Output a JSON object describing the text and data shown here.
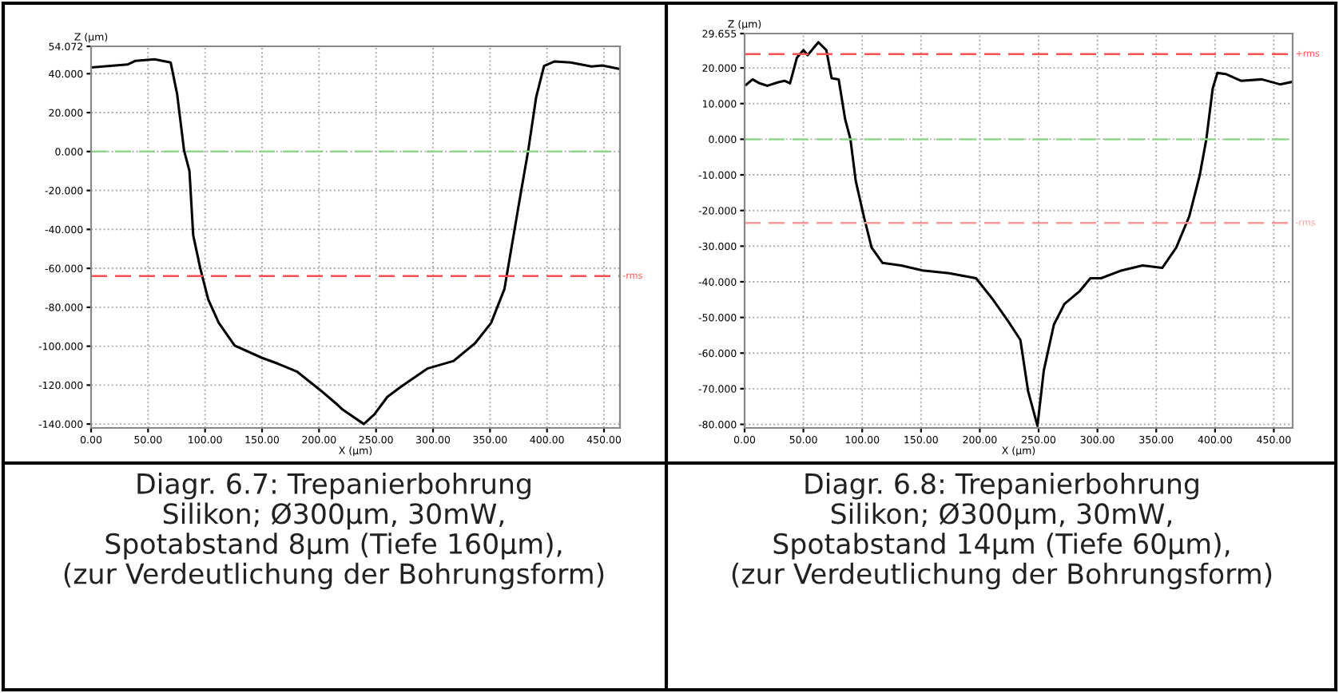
{
  "chart_data": [
    {
      "type": "line",
      "xlabel": "X (µm)",
      "ylabel": "Z (µm)",
      "annotations": [
        "Diagr. 6.7: Trepanierbohrung\nSilikon; Ø300µm, 30mW,\nSpotabstand 8µm (Tiefe 160µm),\n(zur Verdeutlichung der Bohrungsform)"
      ],
      "series": [
        {
          "color": "#000000",
          "x": [
            0,
            32,
            39,
            55.7,
            62.7,
            69.8,
            75.5,
            81.6,
            86.3,
            89.6,
            95.8,
            102.8,
            112,
            126,
            150,
            164,
            180.5,
            202,
            216,
            220.7,
            239.3,
            248.6,
            260,
            272,
            295,
            318,
            337,
            351,
            362.6,
            369.5,
            376.5,
            383.5,
            390.5,
            397.4,
            406.7,
            420.7,
            439,
            448.6,
            464
          ],
          "values": [
            43.2,
            44.7,
            46.6,
            47.4,
            46.6,
            45.8,
            29.5,
            0.5,
            -10,
            -43,
            -60,
            -76,
            -88,
            -99.7,
            -106,
            -109,
            -113,
            -123,
            -130,
            -132.6,
            -140,
            -135,
            -126,
            -120.8,
            -111.5,
            -107.6,
            -98.4,
            -88,
            -70.7,
            -47,
            -23,
            0.5,
            28,
            44,
            46.3,
            45.8,
            43.7,
            44.2,
            42.4
          ]
        }
      ],
      "xlim": [
        0,
        464
      ],
      "ylim": [
        -142,
        54.072
      ],
      "xticks": [
        {
          "value": 0,
          "label": "0.00"
        },
        {
          "value": 50,
          "label": "50.00"
        },
        {
          "value": 100,
          "label": "100.00"
        },
        {
          "value": 150,
          "label": "150.00"
        },
        {
          "value": 200,
          "label": "200.00"
        },
        {
          "value": 250,
          "label": "250.00"
        },
        {
          "value": 300,
          "label": "300.00"
        },
        {
          "value": 350,
          "label": "350.00"
        },
        {
          "value": 400,
          "label": "400.00"
        },
        {
          "value": 450,
          "label": "450.00"
        }
      ],
      "yticks": [
        {
          "value": -140,
          "label": "-140.000"
        },
        {
          "value": -120,
          "label": "-120.000"
        },
        {
          "value": -100,
          "label": "-100.000"
        },
        {
          "value": -80,
          "label": "-80.000"
        },
        {
          "value": -60,
          "label": "-60.000"
        },
        {
          "value": -40,
          "label": "-40.000"
        },
        {
          "value": -20,
          "label": "-20.000"
        },
        {
          "value": 0,
          "label": "0.000"
        },
        {
          "value": 20,
          "label": "20.000"
        },
        {
          "value": 40,
          "label": "40.000"
        },
        {
          "value": 54.072,
          "label": "54.072"
        }
      ],
      "ref_lines": [
        {
          "axis": "y",
          "value": 0,
          "label": null,
          "color": "#90d890",
          "line_style": "dashed"
        },
        {
          "axis": "y",
          "value": -64,
          "label": "-rms",
          "color": "#ff5050",
          "line_style": "dashed"
        }
      ],
      "grid": true,
      "marker": "none",
      "line_style": "solid"
    },
    {
      "type": "line",
      "xlabel": "X (µm)",
      "ylabel": "Z (µm)",
      "annotations": [
        "Diagr. 6.8: Trepanierbohrung\nSilikon; Ø300µm, 30mW,\nSpotabstand 14µm (Tiefe 60µm),\n(zur Verdeutlichung der Bohrungsform)"
      ],
      "series": [
        {
          "color": "#000000",
          "x": [
            1.4,
            6.8,
            12.7,
            19.5,
            28.6,
            34,
            38.6,
            44.5,
            50,
            53.6,
            62.7,
            69.5,
            74,
            80,
            85.5,
            90,
            94.5,
            101.4,
            108,
            117.3,
            133,
            151.4,
            174,
            196.8,
            210.5,
            224,
            234.5,
            241,
            249,
            254.4,
            263,
            272,
            285,
            294,
            303,
            320.7,
            338.4,
            355.1,
            367,
            378,
            387,
            392.6,
            398,
            402,
            409,
            422,
            439.8,
            455.2,
            465.4
          ],
          "values": [
            15.3,
            16.8,
            15.7,
            15,
            16,
            16.4,
            15.7,
            22.9,
            25,
            23.6,
            27.2,
            25,
            17.1,
            16.8,
            5.6,
            0,
            -11.7,
            -21.7,
            -30.4,
            -34.7,
            -35.4,
            -36.8,
            -37.6,
            -39,
            -44.7,
            -51,
            -56.3,
            -70.6,
            -80.4,
            -64.9,
            -52,
            -46.2,
            -42.6,
            -39,
            -39,
            -36.8,
            -35.4,
            -36.1,
            -30.4,
            -21.7,
            -10.1,
            0,
            14.2,
            18.6,
            18.3,
            16.4,
            16.8,
            15.4,
            16.1
          ]
        }
      ],
      "xlim": [
        0,
        466
      ],
      "ylim": [
        -81,
        29.655
      ],
      "xticks": [
        {
          "value": 0,
          "label": "0.00"
        },
        {
          "value": 50,
          "label": "50.00"
        },
        {
          "value": 100,
          "label": "100.00"
        },
        {
          "value": 150,
          "label": "150.00"
        },
        {
          "value": 200,
          "label": "200.00"
        },
        {
          "value": 250,
          "label": "250.00"
        },
        {
          "value": 300,
          "label": "300.00"
        },
        {
          "value": 350,
          "label": "350.00"
        },
        {
          "value": 400,
          "label": "400.00"
        },
        {
          "value": 450,
          "label": "450.00"
        }
      ],
      "yticks": [
        {
          "value": -80,
          "label": "-80.000"
        },
        {
          "value": -70,
          "label": "-70.000"
        },
        {
          "value": -60,
          "label": "-60.000"
        },
        {
          "value": -50,
          "label": "-50.000"
        },
        {
          "value": -40,
          "label": "-40.000"
        },
        {
          "value": -30,
          "label": "-30.000"
        },
        {
          "value": -20,
          "label": "-20.000"
        },
        {
          "value": -10,
          "label": "-10.000"
        },
        {
          "value": 0,
          "label": "0.000"
        },
        {
          "value": 10,
          "label": "10.000"
        },
        {
          "value": 20,
          "label": "20.000"
        },
        {
          "value": 29.655,
          "label": "29.655"
        }
      ],
      "ref_lines": [
        {
          "axis": "y",
          "value": 23.9,
          "label": "+rms",
          "color": "#ff5050",
          "line_style": "dashed"
        },
        {
          "axis": "y",
          "value": 0,
          "label": null,
          "color": "#90d890",
          "line_style": "dashed"
        },
        {
          "axis": "y",
          "value": -23.5,
          "label": "-rms",
          "color": "#ff9999",
          "line_style": "dashed"
        }
      ],
      "grid": true,
      "marker": "none",
      "line_style": "solid"
    }
  ]
}
